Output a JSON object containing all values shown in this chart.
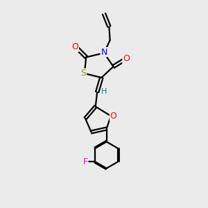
{
  "bg_color": "#ebebeb",
  "bond_color": "#000000",
  "atom_colors": {
    "O": "#ff0000",
    "N": "#0000ff",
    "S": "#999900",
    "F": "#ff00cc",
    "H": "#008080",
    "C": "#000000"
  },
  "lw": 1.6,
  "fs": 9
}
